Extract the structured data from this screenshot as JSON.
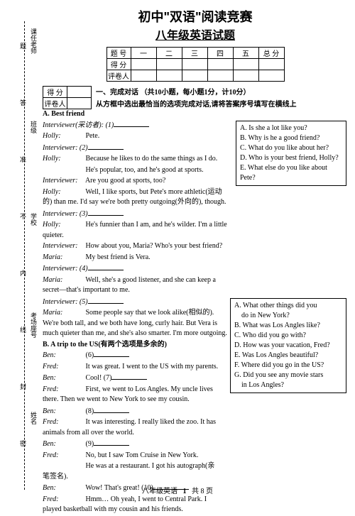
{
  "title1": "初中\"双语\"阅读竞赛",
  "title2": "八年级英语试题",
  "scoreTable": {
    "headers": [
      "题 号",
      "一",
      "二",
      "三",
      "四",
      "五",
      "总 分"
    ],
    "rows": [
      "得 分",
      "评卷人"
    ]
  },
  "subTable": [
    "得 分",
    "评卷人"
  ],
  "section1": {
    "num": "一、完成对话",
    "pts": "（共10小题，每小题1分，计10分）",
    "instr": "从方框中选出最恰当的选项完成对话,请将答案序号填写在横线上"
  },
  "dialogA": {
    "title": "A. Best friend",
    "lines": [
      {
        "sp": "Interviewer(采访者): (1)",
        "blank": true
      },
      {
        "sp": "Holly:",
        "txt": "Pete."
      },
      {
        "sp": "Interviewer: (2)",
        "blank": true
      },
      {
        "sp": "Holly:",
        "txt": "Because he likes to do the same things as I do."
      },
      {
        "sp": "",
        "txt": "He's popular, too, and he's good at sports."
      },
      {
        "sp": "Interviewer:",
        "txt": "Are you good at sports, too?"
      },
      {
        "sp": "Holly:",
        "txt": "Well, I like sports, but Pete's more athletic(运动的) than me. I'd say we're both pretty outgoing(外向的), though."
      },
      {
        "sp": "Interviewer: (3)",
        "blank": true
      },
      {
        "sp": "Holly:",
        "txt": "He's funnier than I am, and he's wilder. I'm a little quieter."
      },
      {
        "sp": "Interviewer:",
        "txt": "How about you, Maria? Who's your best friend?"
      },
      {
        "sp": "Maria:",
        "txt": "My best friend is Vera."
      },
      {
        "sp": "Interviewer: (4)",
        "blank": true
      },
      {
        "sp": "Maria:",
        "txt": "Well, she's a good listener, and she can keep a secret—that's important to me."
      },
      {
        "sp": "Interviewer: (5)",
        "blank": true
      },
      {
        "sp": "Maria:",
        "txt": "Some people say that we look alike(相似的). We're both tall, and we both have long, curly hair. But Vera is much quieter than me, and she's also smarter. I'm more outgoing."
      }
    ]
  },
  "boxA": [
    "A. Is she a lot like you?",
    "B. Why is he a good friend?",
    "C. What do you like about her?",
    "D. Who is your best friend, Holly?",
    "E. What else do you like about Pete?"
  ],
  "dialogB": {
    "title": "B. A trip to the US(有两个选项是多余的)",
    "lines": [
      {
        "sp": "Ben:",
        "txt": "(6)",
        "blank": true
      },
      {
        "sp": "Fred:",
        "txt": "It was great. I went to the US with my parents."
      },
      {
        "sp": "Ben:",
        "txt": "Cool! (7)",
        "blank": true
      },
      {
        "sp": "Fred:",
        "txt": "First, we went to Los Angles. My uncle lives there. Then we went to New York to see my cousin."
      },
      {
        "sp": "Ben:",
        "txt": "(8)",
        "blank": true
      },
      {
        "sp": "Fred:",
        "txt": "It was interesting. I really liked the zoo. It has animals from all over the world."
      },
      {
        "sp": "Ben:",
        "txt": "(9)",
        "blank": true
      },
      {
        "sp": "Fred:",
        "txt": "No, but I saw Tom Cruise in New York."
      },
      {
        "sp": "",
        "txt": "He was at a restaurant. I got his autograph(亲笔签名)."
      },
      {
        "sp": "Ben:",
        "txt": "Wow! That's great! (10)",
        "blank": true
      },
      {
        "sp": "Fred:",
        "txt": "Hmm… Oh yeah, I went to Central Park. I played basketball with my cousin and his friends."
      }
    ]
  },
  "boxB": [
    "A. What other things did you",
    "    do in New York?",
    "B. What was Los Angles like?",
    "C. Who did you go with?",
    "D. How was your vacation, Fred?",
    "E. Was Los Angles beautiful?",
    "F. Where did you go in the US?",
    "G. Did you see any movie stars",
    "    in Los Angles?"
  ],
  "binding": [
    "课任老师",
    "班级",
    "学校",
    "考场座号",
    "姓名",
    "题",
    "答",
    "准",
    "不",
    "内",
    "线",
    "封",
    "密"
  ],
  "footer": {
    "l": "八年级英语",
    "p": "1",
    "r": "共 8 页"
  }
}
